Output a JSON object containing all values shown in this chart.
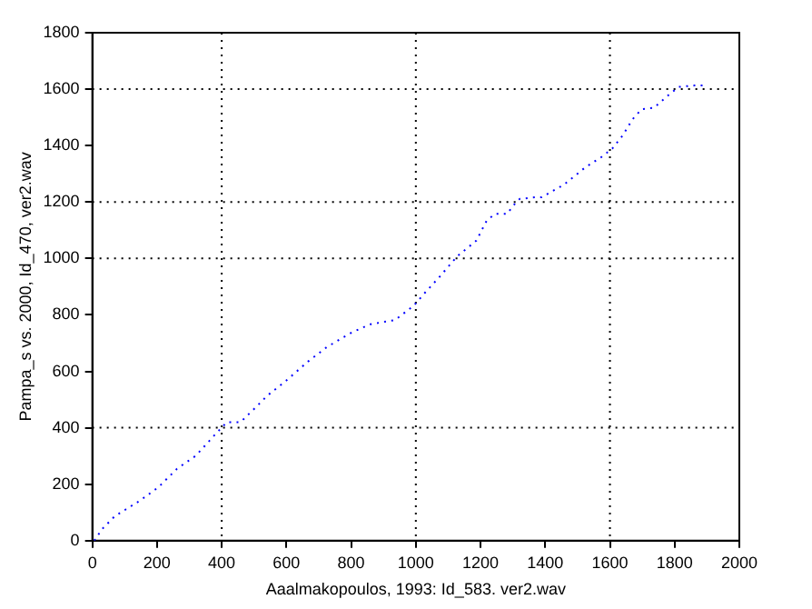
{
  "chart_data": {
    "type": "line",
    "xlabel": "Aaalmakopoulos, 1993: Id_583. ver2.wav",
    "ylabel": "Pampa_s vs. 2000, Id_470, ver2.wav",
    "x": [
      6,
      31,
      69,
      146,
      204,
      262,
      320,
      381,
      416,
      458,
      503,
      541,
      599,
      667,
      725,
      802,
      860,
      936,
      994,
      1023,
      1071,
      1129,
      1187,
      1219,
      1245,
      1283,
      1299,
      1321,
      1370,
      1389,
      1457,
      1524,
      1572,
      1607,
      1640,
      1669,
      1698,
      1736,
      1784,
      1813,
      1861,
      1890
    ],
    "series": [
      {
        "color": "#0000ff",
        "values": [
          0,
          42,
          86,
          141,
          189,
          255,
          301,
          378,
          420,
          420,
          470,
          514,
          567,
          635,
          686,
          738,
          767,
          782,
          833,
          872,
          932,
          1009,
          1063,
          1134,
          1158,
          1158,
          1185,
          1211,
          1217,
          1217,
          1261,
          1323,
          1358,
          1389,
          1437,
          1492,
          1529,
          1534,
          1582,
          1608,
          1613,
          1613
        ]
      }
    ],
    "xlim": [
      0,
      2000
    ],
    "xticks": [
      0,
      200,
      400,
      600,
      800,
      1000,
      1200,
      1400,
      1600,
      1800,
      2000
    ],
    "ylim": [
      0,
      1800
    ],
    "yticks": [
      0,
      200,
      400,
      600,
      800,
      1000,
      1200,
      1400,
      1600,
      1800
    ],
    "grid": false,
    "legend": false,
    "marker": "none",
    "line_style": "dotted",
    "ref_lines": [
      {
        "axis": "x",
        "value": 400,
        "color": "#000000",
        "line_style": "dotted"
      },
      {
        "axis": "x",
        "value": 1000,
        "color": "#000000",
        "line_style": "dotted"
      },
      {
        "axis": "x",
        "value": 1600,
        "color": "#000000",
        "line_style": "dotted"
      },
      {
        "axis": "y",
        "value": 400,
        "color": "#000000",
        "line_style": "dotted"
      },
      {
        "axis": "y",
        "value": 1000,
        "color": "#000000",
        "line_style": "dotted"
      },
      {
        "axis": "y",
        "value": 1200,
        "color": "#000000",
        "line_style": "dotted"
      },
      {
        "axis": "y",
        "value": 1600,
        "color": "#000000",
        "line_style": "dotted"
      }
    ]
  }
}
